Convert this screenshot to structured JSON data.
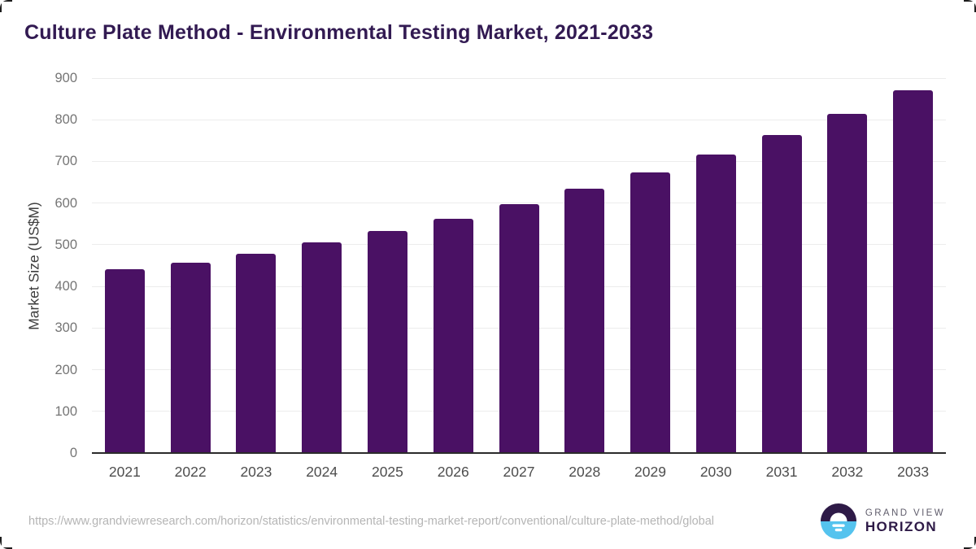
{
  "chart_data": {
    "type": "bar",
    "title": "Culture Plate Method - Environmental Testing Market, 2021-2033",
    "categories": [
      "2021",
      "2022",
      "2023",
      "2024",
      "2025",
      "2026",
      "2027",
      "2028",
      "2029",
      "2030",
      "2031",
      "2032",
      "2033"
    ],
    "values": [
      441,
      457,
      479,
      505,
      532,
      563,
      597,
      634,
      674,
      716,
      763,
      815,
      871
    ],
    "series_name": "Market Size",
    "xlabel": "",
    "ylabel": "Market Size (US$M)",
    "ylim": [
      0,
      900
    ],
    "ytick_step": 100,
    "grid": "horizontal-only",
    "legend": "none"
  },
  "footer": {
    "source_url": "https://www.grandviewresearch.com/horizon/statistics/environmental-testing-market-report/conventional/culture-plate-method/global",
    "logo": {
      "brand_top": "GRAND VIEW",
      "brand_bottom": "HORIZON"
    }
  },
  "colors": {
    "title_text": "#321a52",
    "bar": "#4a1164",
    "axis_line": "#2b2b2b",
    "gridline": "#ececec",
    "tick_label": "#757575",
    "x_label": "#4d4d4d",
    "ylabel_text": "#3d3d3d",
    "source_text": "#b5b5b5",
    "logo_dark": "#2e1a47",
    "logo_blue": "#55c3ee",
    "logo_gray": "#5f5c6b"
  }
}
